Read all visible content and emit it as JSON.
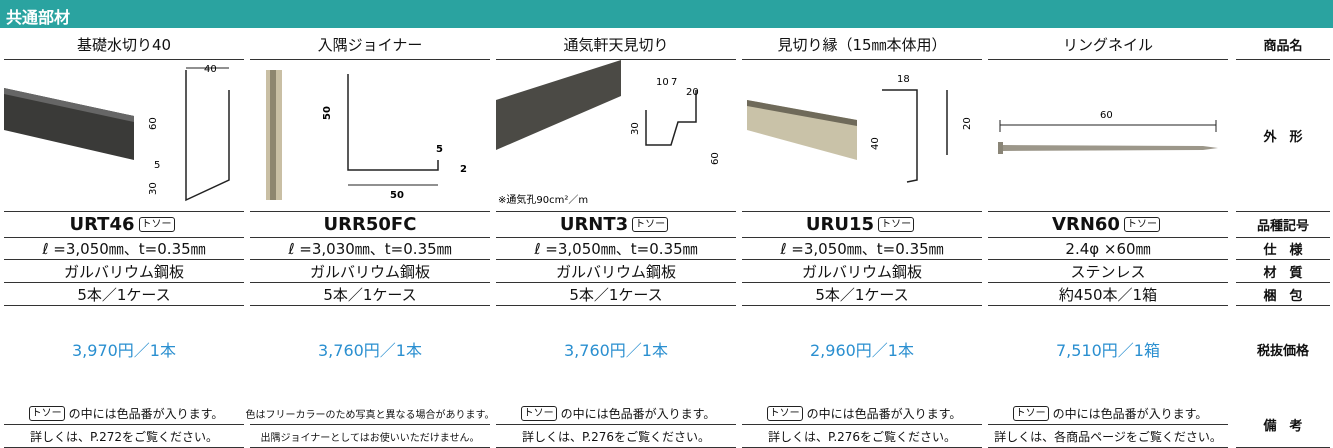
{
  "header": {
    "title": "共通部材"
  },
  "labels": [
    "商品名",
    "外　形",
    "品種記号",
    "仕　様",
    "材　質",
    "梱　包",
    "税抜価格",
    "備　考"
  ],
  "products": [
    {
      "name": "基礎水切り40",
      "code": "URT46",
      "code_badge": "トソー",
      "spec": "ℓ =3,050㎜、t=0.35㎜",
      "material": "ガルバリウム鋼板",
      "packing": "5本／1ケース",
      "price": "3,970円／1本",
      "note_badge": "トソー",
      "notes": [
        "の中には色品番が入ります。",
        "詳しくは、P.272をご覧ください。"
      ],
      "dims": [
        "40",
        "60",
        "5",
        "30"
      ]
    },
    {
      "name": "入隅ジョイナー",
      "code": "URR50FC",
      "spec": "ℓ =3,030㎜、t=0.35㎜",
      "material": "ガルバリウム鋼板",
      "packing": "5本／1ケース",
      "price": "3,760円／1本",
      "notes": [
        "色はフリーカラーのため写真と異なる場合があります。",
        "出隅ジョイナーとしてはお使いいただけません。"
      ],
      "dims": [
        "50",
        "5",
        "2",
        "50"
      ]
    },
    {
      "name": "通気軒天見切り",
      "code": "URNT3",
      "code_badge": "トソー",
      "spec": "ℓ =3,050㎜、t=0.35㎜",
      "material": "ガルバリウム鋼板",
      "packing": "5本／1ケース",
      "price": "3,760円／1本",
      "note_badge": "トソー",
      "notes": [
        "の中には色品番が入ります。",
        "詳しくは、P.276をご覧ください。"
      ],
      "dims": [
        "10",
        "7",
        "20",
        "30",
        "60"
      ],
      "caption": "※通気孔90cm²／m"
    },
    {
      "name": "見切り縁（15㎜本体用）",
      "code": "URU15",
      "code_badge": "トソー",
      "spec": "ℓ =3,050㎜、t=0.35㎜",
      "material": "ガルバリウム鋼板",
      "packing": "5本／1ケース",
      "price": "2,960円／1本",
      "note_badge": "トソー",
      "notes": [
        "の中には色品番が入ります。",
        "詳しくは、P.276をご覧ください。"
      ],
      "dims": [
        "18",
        "20",
        "40"
      ]
    },
    {
      "name": "リングネイル",
      "code": "VRN60",
      "code_badge": "トソー",
      "spec": "2.4φ ×60㎜",
      "material": "ステンレス",
      "packing": "約450本／1箱",
      "price": "7,510円／1箱",
      "note_badge": "トソー",
      "notes": [
        "の中には色品番が入ります。",
        "詳しくは、各商品ページをご覧ください。"
      ],
      "dims": [
        "60"
      ]
    }
  ]
}
